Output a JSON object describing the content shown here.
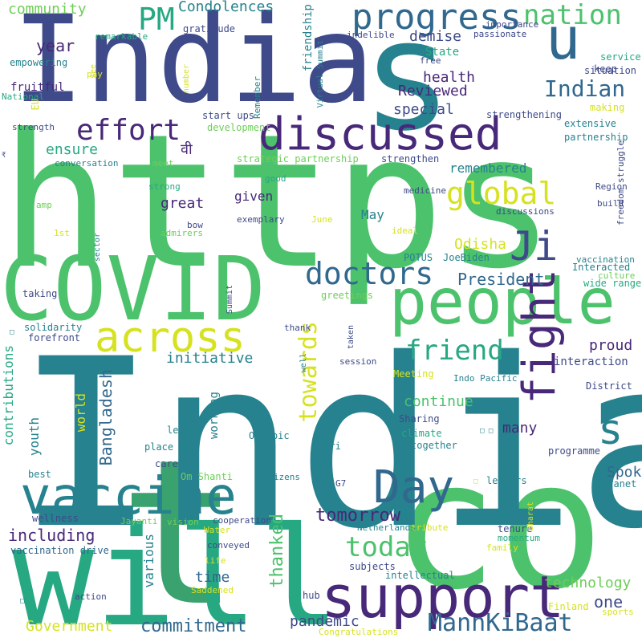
{
  "palette": {
    "purple": "#482878",
    "indigo": "#3e4a89",
    "blue": "#31688e",
    "teal": "#26828e",
    "green_teal": "#1f9e89",
    "green": "#35b779",
    "light_green": "#6ece58",
    "yellow_green": "#b5de2b",
    "yellow": "#fde725"
  },
  "words": [
    {
      "text": "India",
      "color": "#3e4a89",
      "vertical": false
    },
    {
      "text": "https",
      "color": "#4cc26c",
      "vertical": false
    },
    {
      "text": "t",
      "color": "#3aa26e",
      "vertical": false
    },
    {
      "text": "co",
      "color": "#4cc26c",
      "vertical": false
    },
    {
      "text": "India",
      "color": "#26828e",
      "vertical": false
    },
    {
      "text": "s",
      "color": "#26828e",
      "vertical": false
    },
    {
      "text": "will",
      "color": "#26a882",
      "vertical": false
    },
    {
      "text": "COVID",
      "color": "#4cc26c",
      "vertical": false
    },
    {
      "text": "people",
      "color": "#4cc26c",
      "vertical": false
    },
    {
      "text": "support",
      "color": "#482878",
      "vertical": false
    },
    {
      "text": "vaccine",
      "color": "#26828e",
      "vertical": false
    },
    {
      "text": "discussed",
      "color": "#482878",
      "vertical": false
    },
    {
      "text": "progress",
      "color": "#31688e",
      "vertical": false
    },
    {
      "text": "across",
      "color": "#d6e21f",
      "vertical": false
    },
    {
      "text": "fight",
      "color": "#482878",
      "vertical": true
    },
    {
      "text": "u",
      "color": "#31688e",
      "vertical": false
    },
    {
      "text": "Day",
      "color": "#31688e",
      "vertical": false
    },
    {
      "text": "s",
      "color": "#26828e",
      "vertical": false
    },
    {
      "text": "nation",
      "color": "#4cc26c",
      "vertical": false
    },
    {
      "text": "global",
      "color": "#d6e21f",
      "vertical": false
    },
    {
      "text": "Ji",
      "color": "#3e4a89",
      "vertical": false
    },
    {
      "text": "effort",
      "color": "#482878",
      "vertical": false
    },
    {
      "text": "doctors",
      "color": "#31688e",
      "vertical": false
    },
    {
      "text": "friend",
      "color": "#26a882",
      "vertical": false
    },
    {
      "text": "today",
      "color": "#4cc26c",
      "vertical": false
    },
    {
      "text": "MannKiBaat",
      "color": "#31688e",
      "vertical": false
    },
    {
      "text": "towards",
      "color": "#d6e21f",
      "vertical": true
    },
    {
      "text": "PM",
      "color": "#26a882",
      "vertical": false
    },
    {
      "text": "Indian",
      "color": "#31688e",
      "vertical": false
    },
    {
      "text": "commitment",
      "color": "#31688e",
      "vertical": false
    },
    {
      "text": "Bangladesh",
      "color": "#31688e",
      "vertical": true
    },
    {
      "text": "tomorrow",
      "color": "#482878",
      "vertical": false
    },
    {
      "text": "including",
      "color": "#482878",
      "vertical": false
    },
    {
      "text": "thanked",
      "color": "#4cc26c",
      "vertical": true
    },
    {
      "text": "President",
      "color": "#31688e",
      "vertical": false
    },
    {
      "text": "contributions",
      "color": "#26a882",
      "vertical": true
    },
    {
      "text": "Government",
      "color": "#d6e21f",
      "vertical": false
    },
    {
      "text": "technology",
      "color": "#6ece58",
      "vertical": false
    },
    {
      "text": "one",
      "color": "#3e4a89",
      "vertical": false
    },
    {
      "text": "demise",
      "color": "#3e4a89",
      "vertical": false
    },
    {
      "text": "community",
      "color": "#6ece58",
      "vertical": false
    },
    {
      "text": "Condolences",
      "color": "#26828e",
      "vertical": false
    },
    {
      "text": "year",
      "color": "#482878",
      "vertical": false
    },
    {
      "text": "remembered",
      "color": "#26828e",
      "vertical": false
    },
    {
      "text": "ensure",
      "color": "#26a882",
      "vertical": false
    },
    {
      "text": "health",
      "color": "#482878",
      "vertical": false
    },
    {
      "text": "Reviewed",
      "color": "#482878",
      "vertical": false
    },
    {
      "text": "special",
      "color": "#3e4a89",
      "vertical": false
    },
    {
      "text": "pandemic",
      "color": "#3e4a89",
      "vertical": false
    },
    {
      "text": "time",
      "color": "#31688e",
      "vertical": false
    },
    {
      "text": "various",
      "color": "#26828e",
      "vertical": true
    },
    {
      "text": "initiative",
      "color": "#26828e",
      "vertical": false
    },
    {
      "text": "proud",
      "color": "#482878",
      "vertical": false
    },
    {
      "text": "continue",
      "color": "#4cc26c",
      "vertical": false
    },
    {
      "text": "Spoke",
      "color": "#31688e",
      "vertical": false
    },
    {
      "text": "great",
      "color": "#482878",
      "vertical": false
    },
    {
      "text": "given",
      "color": "#482878",
      "vertical": false
    },
    {
      "text": "Odisha",
      "color": "#d6e21f",
      "vertical": false
    },
    {
      "text": "May",
      "color": "#26828e",
      "vertical": false
    },
    {
      "text": "many",
      "color": "#482878",
      "vertical": false
    },
    {
      "text": "working",
      "color": "#26828e",
      "vertical": true
    },
    {
      "text": "world",
      "color": "#d6e21f",
      "vertical": true
    },
    {
      "text": "youth",
      "color": "#26828e",
      "vertical": true
    },
    {
      "text": "friendship",
      "color": "#26828e",
      "vertical": true
    },
    {
      "text": "State",
      "color": "#26a882",
      "vertical": false
    },
    {
      "text": "वी",
      "color": "#482878",
      "vertical": false
    },
    {
      "text": "strategic partnership",
      "color": "#6ece58",
      "vertical": false
    },
    {
      "text": "strengthen",
      "color": "#3e4a89",
      "vertical": false
    },
    {
      "text": "development",
      "color": "#6ece58",
      "vertical": false
    },
    {
      "text": "start ups",
      "color": "#3e4a89",
      "vertical": false
    },
    {
      "text": "fruitful",
      "color": "#482878",
      "vertical": false
    },
    {
      "text": "empowering",
      "color": "#26828e",
      "vertical": false
    },
    {
      "text": "gratitude",
      "color": "#3e4a89",
      "vertical": false
    },
    {
      "text": "remarkable",
      "color": "#26a882",
      "vertical": false
    },
    {
      "text": "importance",
      "color": "#3e4a89",
      "vertical": false
    },
    {
      "text": "passionate",
      "color": "#3e4a89",
      "vertical": false
    },
    {
      "text": "service",
      "color": "#26a882",
      "vertical": false
    },
    {
      "text": "keep",
      "color": "#3e4a89",
      "vertical": false
    },
    {
      "text": "situation",
      "color": "#3e4a89",
      "vertical": false
    },
    {
      "text": "making",
      "color": "#d6e21f",
      "vertical": false
    },
    {
      "text": "extensive",
      "color": "#26828e",
      "vertical": false
    },
    {
      "text": "partnership",
      "color": "#26828e",
      "vertical": false
    },
    {
      "text": "strengthening",
      "color": "#3e4a89",
      "vertical": false
    },
    {
      "text": "freedom struggle",
      "color": "#3e4a89",
      "vertical": true
    },
    {
      "text": "indelible",
      "color": "#3e4a89",
      "vertical": false
    },
    {
      "text": "free",
      "color": "#3e4a89",
      "vertical": false
    },
    {
      "text": "Virtual Summit",
      "color": "#26828e",
      "vertical": true
    },
    {
      "text": "number",
      "color": "#d6e21f",
      "vertical": true
    },
    {
      "text": "Remember",
      "color": "#26828e",
      "vertical": true
    },
    {
      "text": "see",
      "color": "#d6e21f",
      "vertical": true
    },
    {
      "text": "pay",
      "color": "#d6e21f",
      "vertical": false
    },
    {
      "text": "National",
      "color": "#26a882",
      "vertical": false
    },
    {
      "text": "EU",
      "color": "#d6e21f",
      "vertical": true
    },
    {
      "text": "strength",
      "color": "#3e4a89",
      "vertical": false
    },
    {
      "text": "conversation",
      "color": "#26828e",
      "vertical": false
    },
    {
      "text": "meet",
      "color": "#6ece58",
      "vertical": false
    },
    {
      "text": "strong",
      "color": "#26a882",
      "vertical": false
    },
    {
      "text": "good",
      "color": "#26a882",
      "vertical": false
    },
    {
      "text": "medicine",
      "color": "#3e4a89",
      "vertical": false
    },
    {
      "text": "Region",
      "color": "#3e4a89",
      "vertical": false
    },
    {
      "text": "build",
      "color": "#3e4a89",
      "vertical": false
    },
    {
      "text": "discussions",
      "color": "#3e4a89",
      "vertical": false
    },
    {
      "text": "amp",
      "color": "#6ece58",
      "vertical": false
    },
    {
      "text": "bow",
      "color": "#3e4a89",
      "vertical": false
    },
    {
      "text": "exemplary",
      "color": "#3e4a89",
      "vertical": false
    },
    {
      "text": "June",
      "color": "#d6e21f",
      "vertical": false
    },
    {
      "text": "admirers",
      "color": "#6ece58",
      "vertical": false
    },
    {
      "text": "ideal",
      "color": "#d6e21f",
      "vertical": false
    },
    {
      "text": "1st",
      "color": "#d6e21f",
      "vertical": false
    },
    {
      "text": "sector",
      "color": "#26828e",
      "vertical": true
    },
    {
      "text": "POTUS",
      "color": "#26828e",
      "vertical": false
    },
    {
      "text": "JoeBiden",
      "color": "#26828e",
      "vertical": false
    },
    {
      "text": "vaccination",
      "color": "#26828e",
      "vertical": false
    },
    {
      "text": "Interacted",
      "color": "#26828e",
      "vertical": false
    },
    {
      "text": "culture",
      "color": "#6ece58",
      "vertical": false
    },
    {
      "text": "wide range",
      "color": "#26a882",
      "vertical": false
    },
    {
      "text": "taking",
      "color": "#3e4a89",
      "vertical": false
    },
    {
      "text": "Summit",
      "color": "#3e4a89",
      "vertical": true
    },
    {
      "text": "greetings",
      "color": "#6ece58",
      "vertical": false
    },
    {
      "text": "solidarity",
      "color": "#26828e",
      "vertical": false
    },
    {
      "text": "forefront",
      "color": "#3e4a89",
      "vertical": false
    },
    {
      "text": "thank",
      "color": "#3e4a89",
      "vertical": false
    },
    {
      "text": "taken",
      "color": "#3e4a89",
      "vertical": true
    },
    {
      "text": "well",
      "color": "#26828e",
      "vertical": true
    },
    {
      "text": "session",
      "color": "#3e4a89",
      "vertical": false
    },
    {
      "text": "interaction",
      "color": "#3e4a89",
      "vertical": false
    },
    {
      "text": "Meeting",
      "color": "#d6e21f",
      "vertical": false
    },
    {
      "text": "Indo Pacific",
      "color": "#26828e",
      "vertical": false
    },
    {
      "text": "District",
      "color": "#3e4a89",
      "vertical": false
    },
    {
      "text": "left",
      "color": "#26828e",
      "vertical": false
    },
    {
      "text": "Olympic",
      "color": "#26828e",
      "vertical": false
    },
    {
      "text": "Sharing",
      "color": "#3e4a89",
      "vertical": false
    },
    {
      "text": "climate",
      "color": "#26a882",
      "vertical": false
    },
    {
      "text": "place",
      "color": "#26828e",
      "vertical": false
    },
    {
      "text": "care",
      "color": "#3e4a89",
      "vertical": false
    },
    {
      "text": "Shri",
      "color": "#26828e",
      "vertical": false
    },
    {
      "text": "together",
      "color": "#26828e",
      "vertical": false
    },
    {
      "text": "programme",
      "color": "#3e4a89",
      "vertical": false
    },
    {
      "text": "best",
      "color": "#26828e",
      "vertical": false
    },
    {
      "text": "Om Shanti",
      "color": "#6ece58",
      "vertical": false
    },
    {
      "text": "citizens",
      "color": "#26828e",
      "vertical": false
    },
    {
      "text": "G7",
      "color": "#3e4a89",
      "vertical": false
    },
    {
      "text": "leaders",
      "color": "#26828e",
      "vertical": false
    },
    {
      "text": "planet",
      "color": "#26828e",
      "vertical": false
    },
    {
      "text": "wellness",
      "color": "#3e4a89",
      "vertical": false
    },
    {
      "text": "Jayanti",
      "color": "#6ece58",
      "vertical": false
    },
    {
      "text": "vision",
      "color": "#6ece58",
      "vertical": false
    },
    {
      "text": "cooperation",
      "color": "#3e4a89",
      "vertical": false
    },
    {
      "text": "Water",
      "color": "#d6e21f",
      "vertical": false
    },
    {
      "text": "Netherlands",
      "color": "#26828e",
      "vertical": false
    },
    {
      "text": "tribute",
      "color": "#d6e21f",
      "vertical": false
    },
    {
      "text": "tenure",
      "color": "#3e4a89",
      "vertical": false
    },
    {
      "text": "momentum",
      "color": "#26a882",
      "vertical": false
    },
    {
      "text": "family",
      "color": "#d6e21f",
      "vertical": false
    },
    {
      "text": "Bharat",
      "color": "#d6e21f",
      "vertical": true
    },
    {
      "text": "vaccination drive",
      "color": "#31688e",
      "vertical": false
    },
    {
      "text": "conveyed",
      "color": "#3e4a89",
      "vertical": false
    },
    {
      "text": "life",
      "color": "#d6e21f",
      "vertical": false
    },
    {
      "text": "Saddened",
      "color": "#d6e21f",
      "vertical": false
    },
    {
      "text": "subjects",
      "color": "#3e4a89",
      "vertical": false
    },
    {
      "text": "intellectual",
      "color": "#26828e",
      "vertical": false
    },
    {
      "text": "hub",
      "color": "#3e4a89",
      "vertical": false
    },
    {
      "text": "action",
      "color": "#3e4a89",
      "vertical": false
    },
    {
      "text": "Finland",
      "color": "#d6e21f",
      "vertical": false
    },
    {
      "text": "sports",
      "color": "#d6e21f",
      "vertical": false
    },
    {
      "text": "Congratulations",
      "color": "#d6e21f",
      "vertical": false
    },
    {
      "text": "₹",
      "color": "#3e4a89",
      "vertical": false
    },
    {
      "text": "□",
      "color": "#26828e",
      "vertical": false
    },
    {
      "text": "□ □",
      "color": "#26828e",
      "vertical": false
    },
    {
      "text": "□",
      "color": "#d6e21f",
      "vertical": false
    },
    {
      "text": "□",
      "color": "#26828e",
      "vertical": false
    }
  ]
}
